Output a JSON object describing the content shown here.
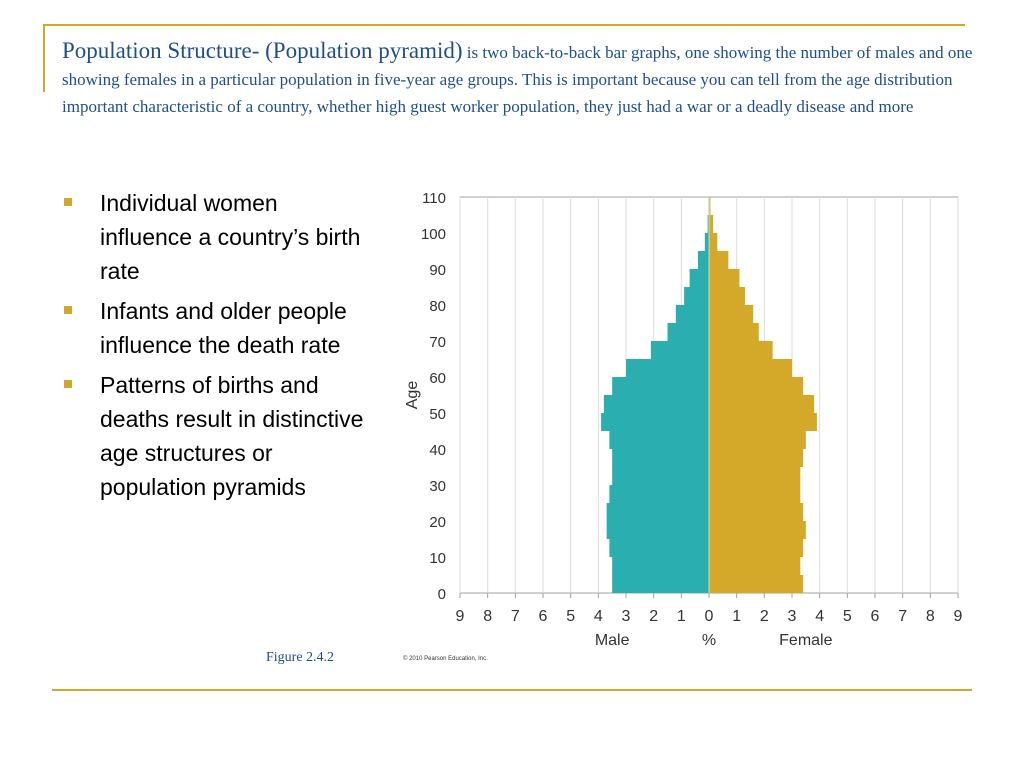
{
  "slide": {
    "title_main": "Population Structure- (Population pyramid)",
    "title_rest": " is two back-to-back bar graphs, one showing the number of males and one showing females in a particular population in five-year age groups.  This is important because you can tell from the age distribution important characteristic of a country, whether high guest worker population, they just had a war or a deadly disease and more",
    "bullets": [
      "Individual women influence a country’s birth rate",
      "Infants and older people influence the death rate",
      "Patterns of births and deaths result in distinctive age structures or population pyramids"
    ],
    "figure_caption": "Figure 2.4.2",
    "copyright": "© 2010 Pearson Education, Inc.",
    "colors": {
      "accent": "#d4a72c",
      "title": "#1f4e8c",
      "male": "#2baeb0",
      "female": "#d4a829"
    }
  },
  "chart_data": {
    "type": "bar",
    "orientation": "horizontal-back-to-back",
    "title": "",
    "ylabel": "Age",
    "xlabel": "%",
    "xlabel_left": "Male",
    "xlabel_right": "Female",
    "y_ticks": [
      0,
      10,
      20,
      30,
      40,
      50,
      60,
      70,
      80,
      90,
      100,
      110
    ],
    "x_ticks": [
      9,
      8,
      7,
      6,
      5,
      4,
      3,
      2,
      1,
      0,
      1,
      2,
      3,
      4,
      5,
      6,
      7,
      8,
      9
    ],
    "xlim": [
      -9,
      9
    ],
    "ylim": [
      0,
      110
    ],
    "age_group_starts": [
      0,
      5,
      10,
      15,
      20,
      25,
      30,
      35,
      40,
      45,
      50,
      55,
      60,
      65,
      70,
      75,
      80,
      85,
      90,
      95,
      100,
      105
    ],
    "series": [
      {
        "name": "Male",
        "values": [
          3.5,
          3.5,
          3.6,
          3.7,
          3.7,
          3.6,
          3.5,
          3.5,
          3.6,
          3.9,
          3.8,
          3.5,
          3.0,
          2.1,
          1.5,
          1.2,
          0.9,
          0.7,
          0.4,
          0.15,
          0.05,
          0.02
        ]
      },
      {
        "name": "Female",
        "values": [
          3.4,
          3.3,
          3.4,
          3.5,
          3.4,
          3.3,
          3.3,
          3.4,
          3.5,
          3.9,
          3.8,
          3.4,
          3.0,
          2.3,
          1.8,
          1.6,
          1.3,
          1.1,
          0.7,
          0.3,
          0.15,
          0.05
        ]
      }
    ],
    "grid": true,
    "legend": "none"
  }
}
